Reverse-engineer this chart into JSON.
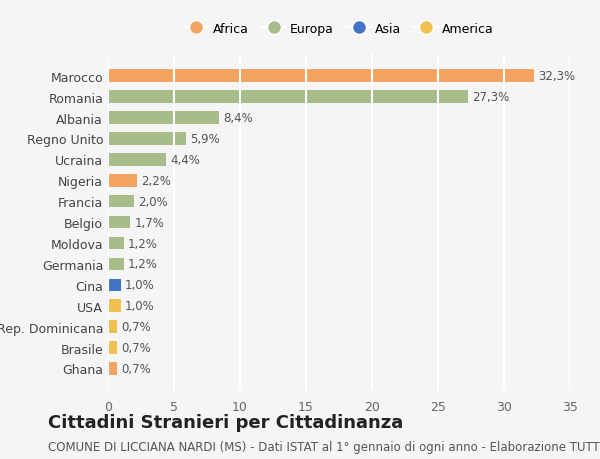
{
  "categories": [
    "Marocco",
    "Romania",
    "Albania",
    "Regno Unito",
    "Ucraina",
    "Nigeria",
    "Francia",
    "Belgio",
    "Moldova",
    "Germania",
    "Cina",
    "USA",
    "Rep. Dominicana",
    "Brasile",
    "Ghana"
  ],
  "values": [
    32.3,
    27.3,
    8.4,
    5.9,
    4.4,
    2.2,
    2.0,
    1.7,
    1.2,
    1.2,
    1.0,
    1.0,
    0.7,
    0.7,
    0.7
  ],
  "labels": [
    "32,3%",
    "27,3%",
    "8,4%",
    "5,9%",
    "4,4%",
    "2,2%",
    "2,0%",
    "1,7%",
    "1,2%",
    "1,2%",
    "1,0%",
    "1,0%",
    "0,7%",
    "0,7%",
    "0,7%"
  ],
  "continents": [
    "Africa",
    "Europa",
    "Europa",
    "Europa",
    "Europa",
    "Africa",
    "Europa",
    "Europa",
    "Europa",
    "Europa",
    "Asia",
    "America",
    "America",
    "America",
    "Africa"
  ],
  "colors": {
    "Africa": "#F4A460",
    "Europa": "#A8BC8A",
    "Asia": "#4472C4",
    "America": "#F0C050"
  },
  "legend_order": [
    "Africa",
    "Europa",
    "Asia",
    "America"
  ],
  "xlim": [
    0,
    35
  ],
  "xticks": [
    0,
    5,
    10,
    15,
    20,
    25,
    30,
    35
  ],
  "background_color": "#f5f5f5",
  "grid_color": "#ffffff",
  "title": "Cittadini Stranieri per Cittadinanza",
  "subtitle": "COMUNE DI LICCIANA NARDI (MS) - Dati ISTAT al 1° gennaio di ogni anno - Elaborazione TUTTITALIA.IT",
  "bar_height": 0.6,
  "title_fontsize": 13,
  "subtitle_fontsize": 8.5,
  "tick_fontsize": 9,
  "label_fontsize": 8.5,
  "legend_fontsize": 9
}
